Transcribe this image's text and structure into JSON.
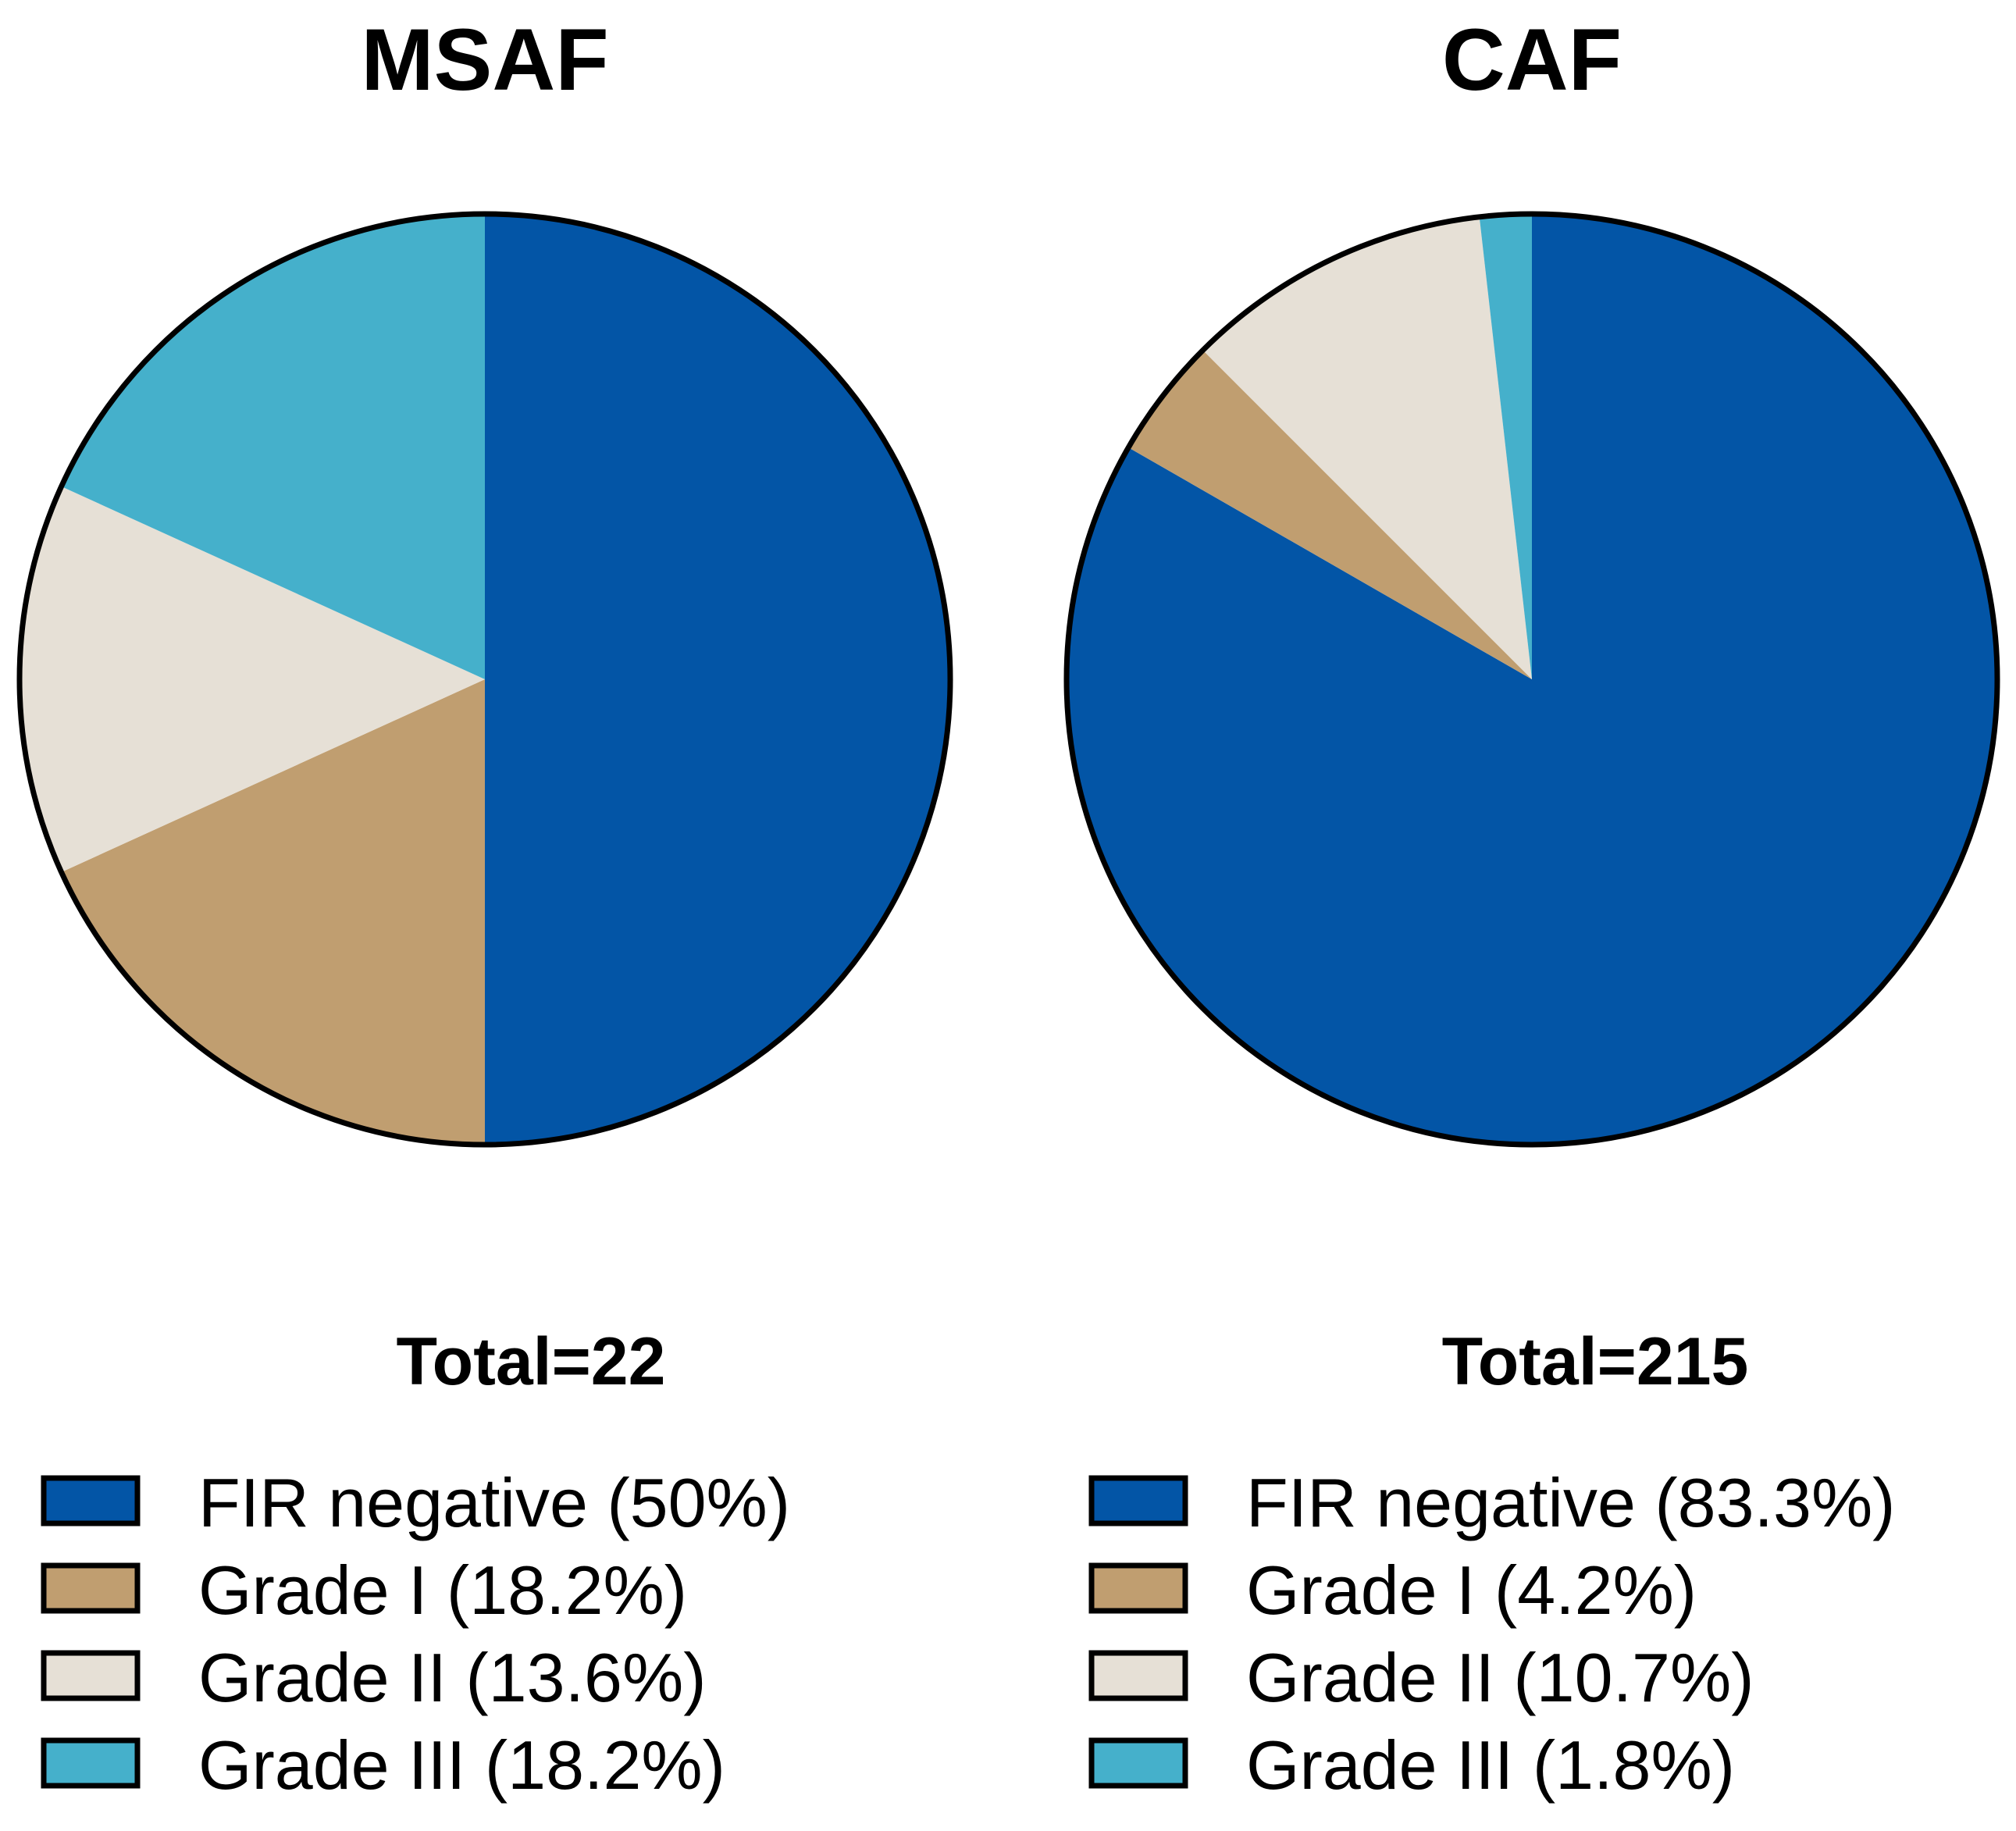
{
  "chart_data": [
    {
      "type": "pie",
      "title": "MSAF",
      "total_label": "Total=22",
      "slices": [
        {
          "name": "FIR negative",
          "label": "FIR negative (50%)",
          "value": 50.0,
          "color": "#0355A6"
        },
        {
          "name": "Grade I",
          "label": "Grade I (18.2%)",
          "value": 18.2,
          "color": "#C09E70"
        },
        {
          "name": "Grade II",
          "label": "Grade II (13.6%)",
          "value": 13.6,
          "color": "#E6E0D6"
        },
        {
          "name": "Grade III",
          "label": "Grade III (18.2%)",
          "value": 18.2,
          "color": "#45B0CB"
        }
      ],
      "start_angle": "12 o'clock",
      "direction": "clockwise",
      "legend_position": "bottom"
    },
    {
      "type": "pie",
      "title": "CAF",
      "total_label": "Total=215",
      "slices": [
        {
          "name": "FIR negative",
          "label": "FIR negative (83.3%)",
          "value": 83.3,
          "color": "#0355A6"
        },
        {
          "name": "Grade I",
          "label": "Grade I (4.2%)",
          "value": 4.2,
          "color": "#C09E70"
        },
        {
          "name": "Grade II",
          "label": "Grade II (10.7%)",
          "value": 10.7,
          "color": "#E6E0D6"
        },
        {
          "name": "Grade III",
          "label": "Grade III (1.8%)",
          "value": 1.8,
          "color": "#45B0CB"
        }
      ],
      "start_angle": "12 o'clock",
      "direction": "clockwise",
      "legend_position": "bottom"
    }
  ]
}
